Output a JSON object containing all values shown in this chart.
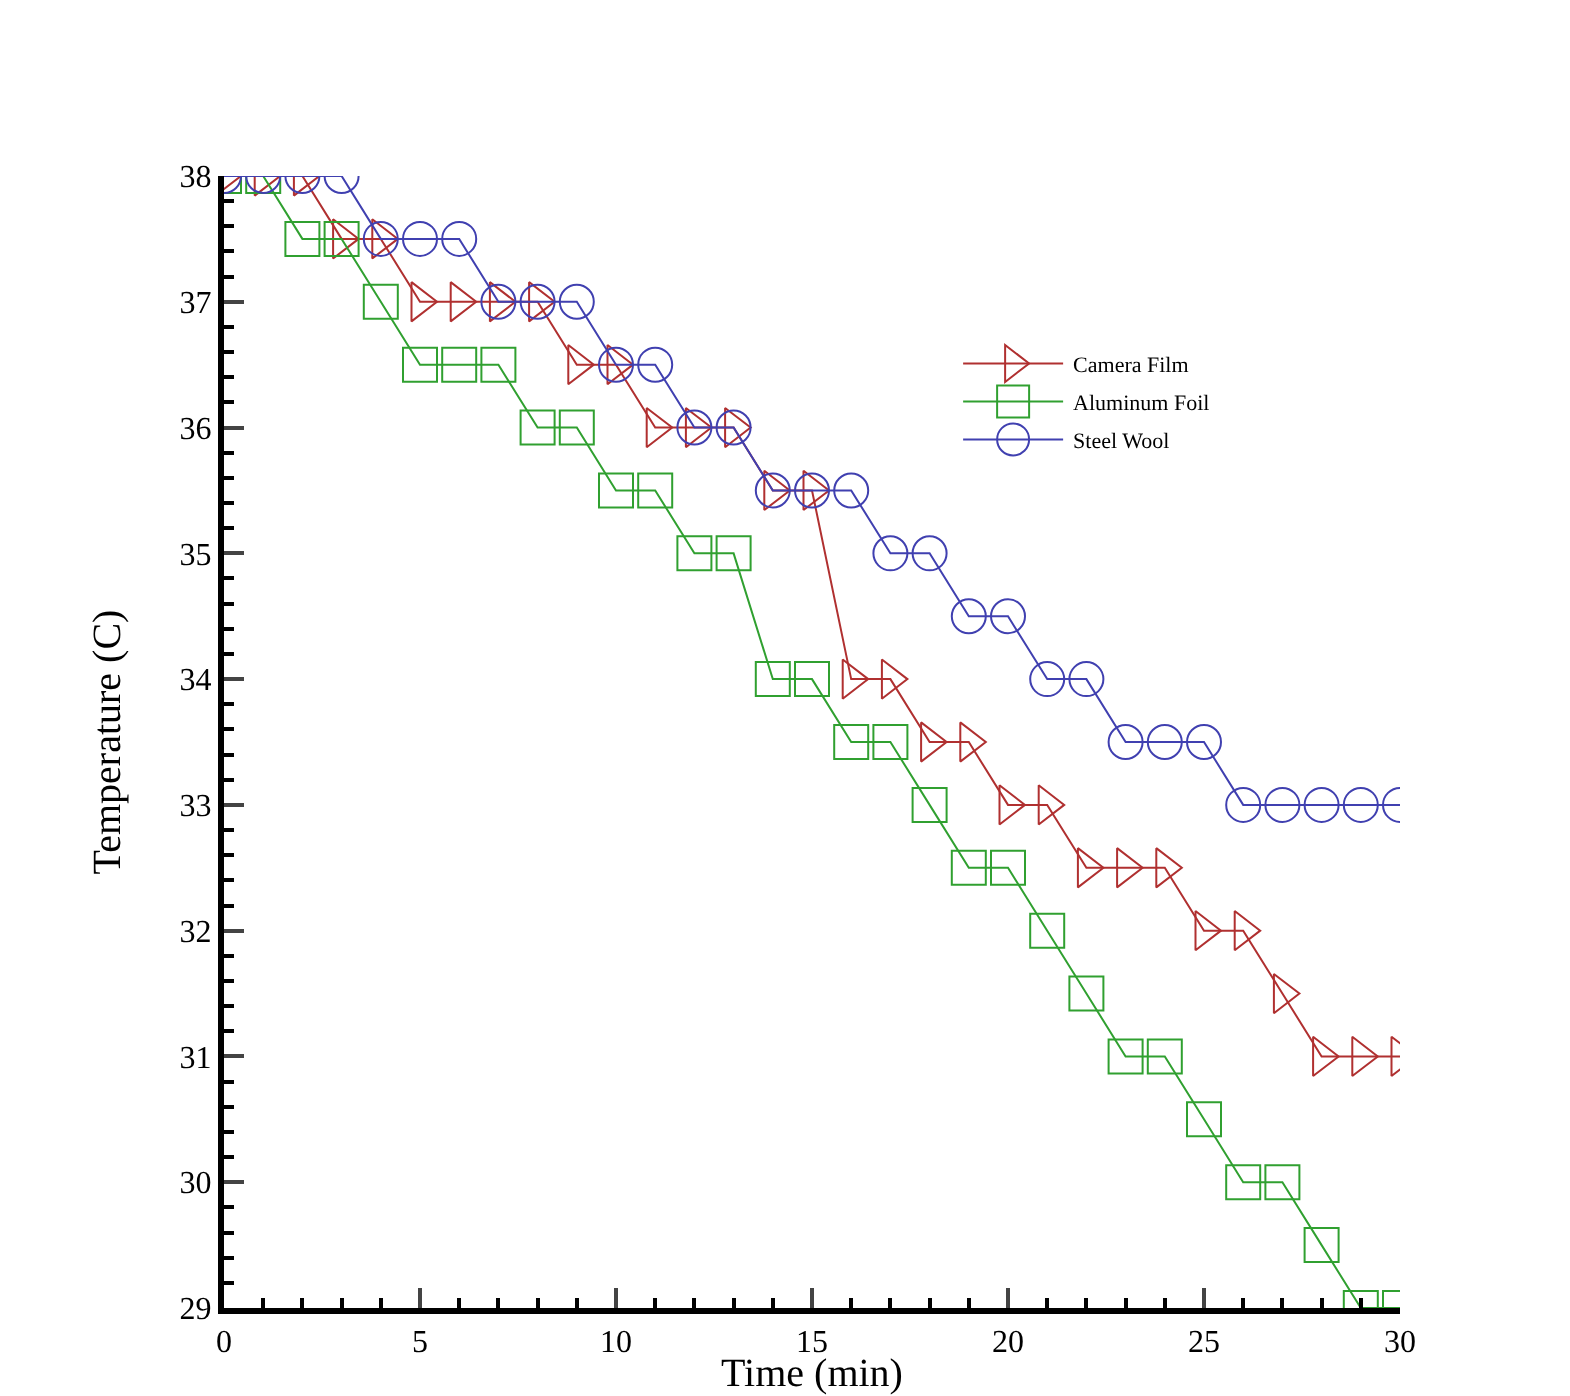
{
  "chart_data": {
    "type": "line",
    "xlabel": "Time (min)",
    "ylabel": "Temperature (C)",
    "x": [
      0,
      1,
      2,
      3,
      4,
      5,
      6,
      7,
      8,
      9,
      10,
      11,
      12,
      13,
      14,
      15,
      16,
      17,
      18,
      19,
      20,
      21,
      22,
      23,
      24,
      25,
      26,
      27,
      28,
      29,
      30
    ],
    "series": [
      {
        "name": "Camera Film",
        "color": "#b03030",
        "marker": "triangle",
        "values": [
          38,
          38,
          38,
          37.5,
          37.5,
          37,
          37,
          37,
          37,
          36.5,
          36.5,
          36,
          36,
          36,
          35.5,
          35.5,
          34,
          34,
          33.5,
          33.5,
          33,
          33,
          32.5,
          32.5,
          32.5,
          32,
          32,
          31.5,
          31,
          31,
          31
        ]
      },
      {
        "name": "Aluminum Foil",
        "color": "#30a030",
        "marker": "square",
        "values": [
          38,
          38,
          37.5,
          37.5,
          37,
          36.5,
          36.5,
          36.5,
          36,
          36,
          35.5,
          35.5,
          35,
          35,
          34,
          34,
          33.5,
          33.5,
          33,
          32.5,
          32.5,
          32,
          31.5,
          31,
          31,
          30.5,
          30,
          30,
          29.5,
          29,
          29
        ]
      },
      {
        "name": "Steel Wool",
        "color": "#4040b0",
        "marker": "circle",
        "values": [
          38,
          38,
          38,
          38,
          37.5,
          37.5,
          37.5,
          37,
          37,
          37,
          36.5,
          36.5,
          36,
          36,
          35.5,
          35.5,
          35.5,
          35,
          35,
          34.5,
          34.5,
          34,
          34,
          33.5,
          33.5,
          33.5,
          33,
          33,
          33,
          33,
          33
        ]
      }
    ],
    "xlim": [
      0,
      30
    ],
    "xticks": [
      0,
      5,
      10,
      15,
      20,
      25,
      30
    ],
    "ylim": [
      29,
      38
    ],
    "yticks": [
      29,
      30,
      31,
      32,
      33,
      34,
      35,
      36,
      37,
      38
    ],
    "grid": false,
    "legend": "top right",
    "line_style": "solid"
  }
}
